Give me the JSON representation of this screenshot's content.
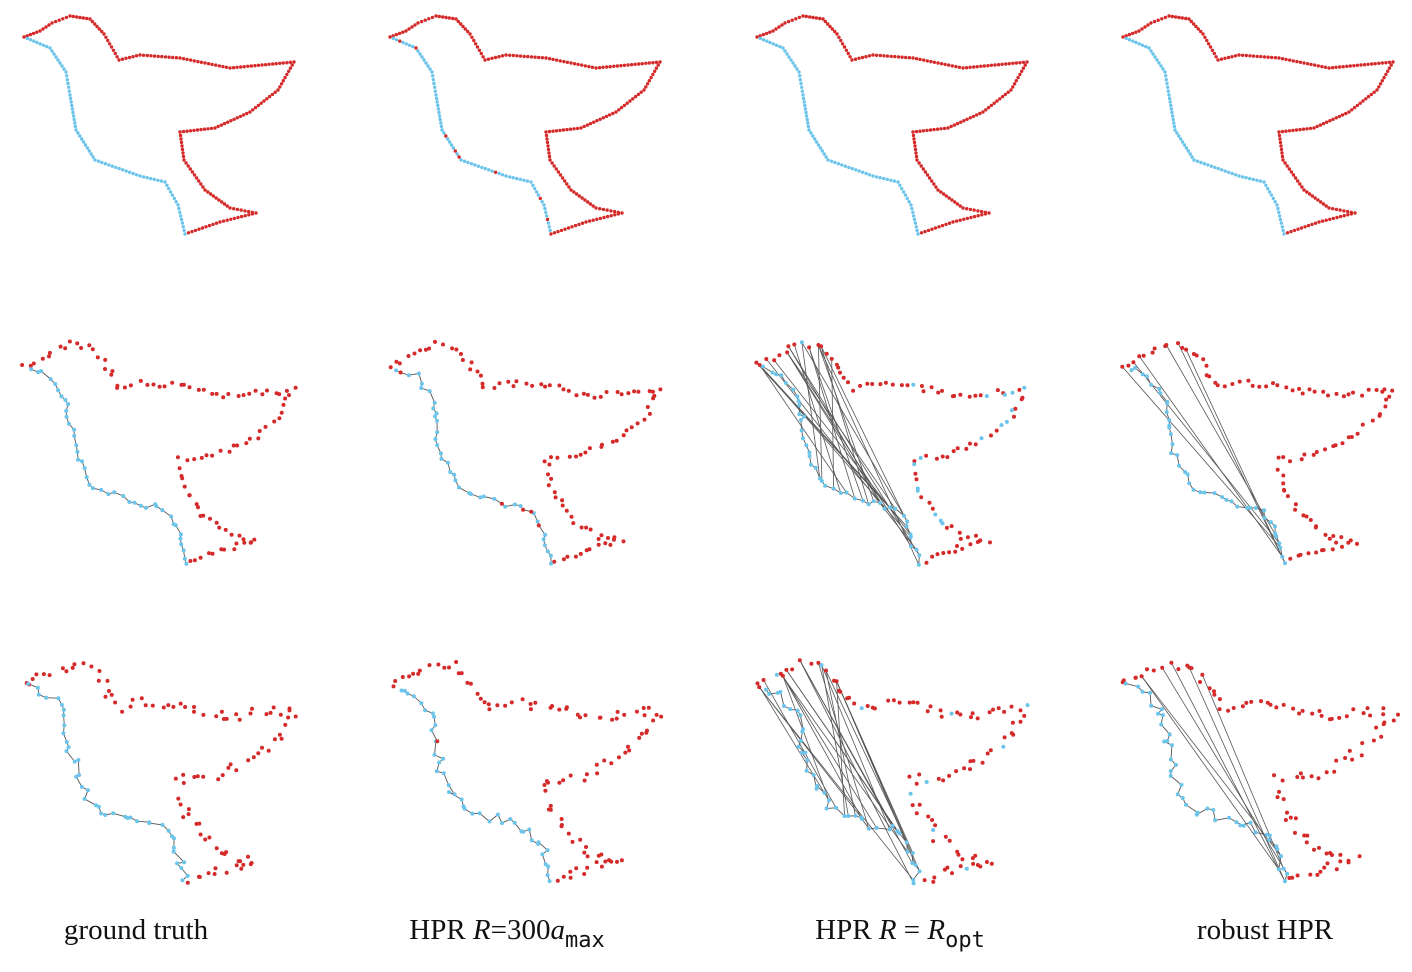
{
  "captions": {
    "ground_truth": "ground truth",
    "hpr_fixed_prefix": "HPR",
    "hpr_fixed_R": "R",
    "hpr_fixed_eq": "=300",
    "hpr_fixed_a": "a",
    "hpr_fixed_sub": "max",
    "hpr_opt_prefix": "HPR",
    "hpr_opt_R": "R",
    "hpr_opt_eq": "=",
    "hpr_opt_R2": "R",
    "hpr_opt_sub": "opt",
    "robust": "robust HPR"
  },
  "colors": {
    "visible_point": "#d42a2a",
    "hidden_point": "#6cc4ea",
    "connector": "#555555"
  },
  "grid": {
    "rows": 3,
    "columns": 4
  },
  "noise_levels": [
    0,
    1,
    2
  ],
  "methods": [
    "ground truth",
    "HPR R=300a_max",
    "HPR R=R_opt",
    "robust HPR"
  ]
}
